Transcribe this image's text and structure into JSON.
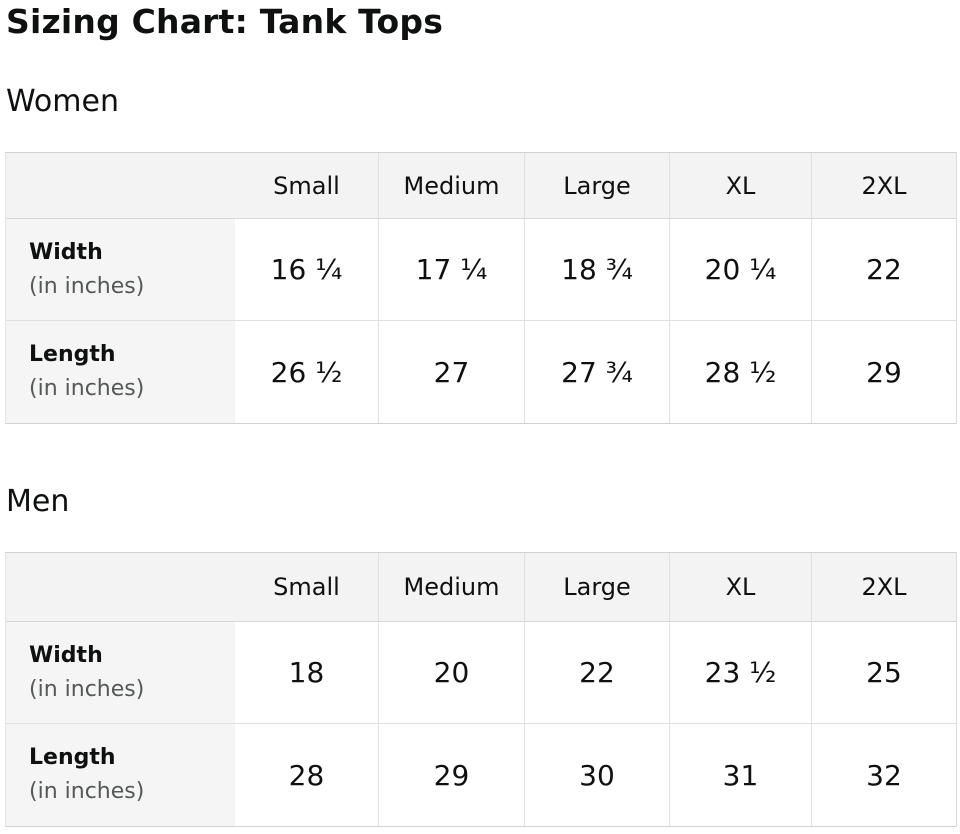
{
  "page": {
    "title": "Sizing Chart: Tank Tops"
  },
  "colors": {
    "text": "#0f1111",
    "muted_text": "#545859",
    "header_bg": "#f3f3f3",
    "label_bg": "#f5f5f5",
    "border": "#d7d7d7",
    "inner_border": "#e0e0e0"
  },
  "sections": [
    {
      "heading": "Women",
      "columns": [
        "Small",
        "Medium",
        "Large",
        "XL",
        "2XL"
      ],
      "rows": [
        {
          "label": "Width",
          "sublabel": "(in inches)",
          "values": [
            "16 ¹⁄₄",
            "17 ¹⁄₄",
            "18 ³⁄₄",
            "20 ¹⁄₄",
            "22"
          ]
        },
        {
          "label": "Length",
          "sublabel": "(in inches)",
          "values": [
            "26 ¹⁄₂",
            "27",
            "27 ³⁄₄",
            "28 ¹⁄₂",
            "29"
          ]
        }
      ]
    },
    {
      "heading": "Men",
      "columns": [
        "Small",
        "Medium",
        "Large",
        "XL",
        "2XL"
      ],
      "rows": [
        {
          "label": "Width",
          "sublabel": "(in inches)",
          "values": [
            "18",
            "20",
            "22",
            "23 ¹⁄₂",
            "25"
          ]
        },
        {
          "label": "Length",
          "sublabel": "(in inches)",
          "values": [
            "28",
            "29",
            "30",
            "31",
            "32"
          ]
        }
      ]
    }
  ]
}
